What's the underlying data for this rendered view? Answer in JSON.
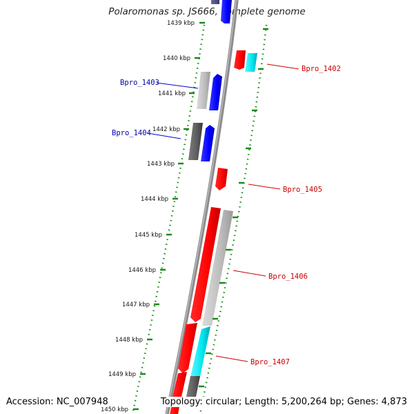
{
  "title": "Polaromonas sp. JS666, complete genome",
  "accession": "Accession: NC_007948",
  "summary": "Topology: circular; Length: 5,200,264 bp; Genes: 4,873",
  "kbp_ticks": [
    "1439 kbp",
    "1440 kbp",
    "1441 kbp",
    "1442 kbp",
    "1443 kbp",
    "1444 kbp",
    "1445 kbp",
    "1446 kbp",
    "1447 kbp",
    "1448 kbp",
    "1449 kbp",
    "1450 kbp"
  ],
  "gene_labels": [
    {
      "text": "Bpro_1402",
      "color": "#cc0000"
    },
    {
      "text": "Bpro_1403",
      "color": "#0000aa"
    },
    {
      "text": "Bpro_1404",
      "color": "#0000aa"
    },
    {
      "text": "Bpro_1405",
      "color": "#cc0000"
    },
    {
      "text": "Bpro_1406",
      "color": "#cc0000"
    },
    {
      "text": "Bpro_1407",
      "color": "#cc0000"
    }
  ],
  "colors": {
    "backbone": "#8c8c8c",
    "scale_dots": "#1a8a1a",
    "red_gene": "#ff0000",
    "blue_gene": "#1010ff",
    "cyan_gene": "#00e8f0",
    "light_gray_gene": "#bdbdbd",
    "dark_gray_gene": "#666666"
  }
}
